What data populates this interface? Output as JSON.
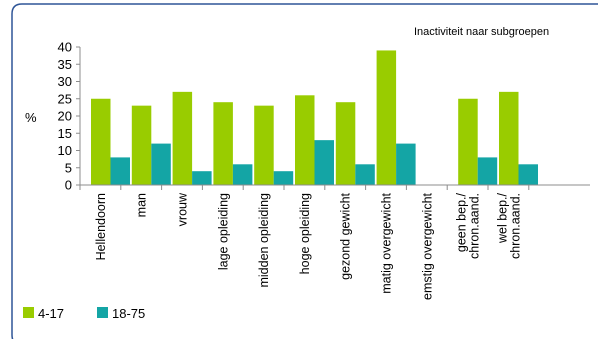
{
  "chart_data": {
    "type": "bar",
    "title": "Inactiviteit naar subgroepen",
    "ylabel": "%",
    "ylim": [
      0,
      40
    ],
    "yticks": [
      0,
      5,
      10,
      15,
      20,
      25,
      30,
      35,
      40
    ],
    "categories": [
      "Hellendoorn",
      "man",
      "vrouw",
      "lage opleiding",
      "midden opleiding",
      "hoge opleiding",
      "gezond gewicht",
      "matig overgewicht",
      "emstig overgewicht",
      "geen bep./ chron.aand.",
      "wel bep./ chron.aand."
    ],
    "series": [
      {
        "name": "4-17",
        "color": "#99cc00",
        "values": [
          25,
          23,
          27,
          24,
          23,
          26,
          24,
          39,
          null,
          25,
          27
        ]
      },
      {
        "name": "18-75",
        "color": "#14a5a5",
        "values": [
          8,
          12,
          4,
          6,
          4,
          13,
          6,
          12,
          null,
          8,
          6
        ]
      }
    ],
    "grid": false,
    "legend_position": "bottom-left",
    "frame_color": "#2f5597"
  }
}
